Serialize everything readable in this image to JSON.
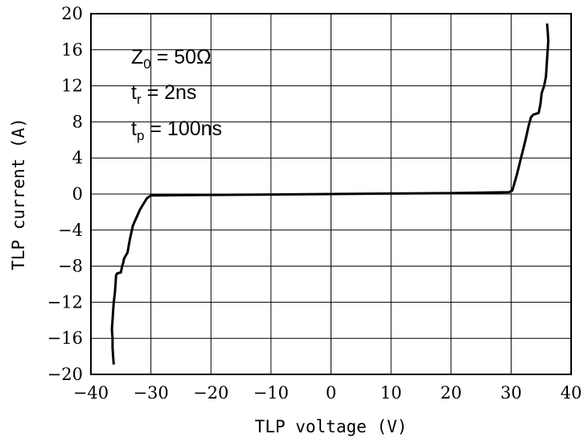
{
  "chart_data": {
    "type": "line",
    "xlabel": "TLP voltage (V)",
    "ylabel": "TLP current (A)",
    "xlim": [
      -40,
      40
    ],
    "ylim": [
      -20,
      20
    ],
    "xticks": [
      -40,
      -30,
      -20,
      -10,
      0,
      10,
      20,
      30,
      40
    ],
    "yticks": [
      20,
      16,
      12,
      8,
      4,
      0,
      -4,
      -8,
      -12,
      -16,
      -20
    ],
    "xtick_labels": [
      "−40",
      "−30",
      "−20",
      "−10",
      "0",
      "10",
      "20",
      "30",
      "40"
    ],
    "ytick_labels": [
      "20",
      "16",
      "12",
      "8",
      "4",
      "0",
      "−4",
      "−8",
      "−12",
      "−16",
      "−20"
    ],
    "grid": true,
    "annotation": {
      "line1": {
        "main": "Z",
        "sub": "0",
        "rest": " = 50Ω"
      },
      "line2": {
        "main": "t",
        "sub": "r",
        "rest": " = 2ns"
      },
      "line3": {
        "main": "t",
        "sub": "p",
        "rest": " = 100ns"
      }
    },
    "series": [
      {
        "color": "#000000",
        "x": [
          -36.2,
          -36.3,
          -36.4,
          -36.4,
          -36.5,
          -36.4,
          -36.3,
          -36.2,
          -36.0,
          -35.9,
          -35.8,
          -35.6,
          -35.0,
          -34.8,
          -34.6,
          -34.5,
          -33.9,
          -33.5,
          -33.0,
          -31.8,
          -30.7,
          -30.1,
          -29.8,
          -20,
          -10,
          0,
          10,
          20,
          29.6,
          30.2,
          30.9,
          32.4,
          32.9,
          33.3,
          33.7,
          34.6,
          34.9,
          35.1,
          35.5,
          35.8,
          35.9,
          36.0,
          36.1,
          36.2,
          36.1,
          36.0
        ],
        "y": [
          -18.9,
          -18.0,
          -17.0,
          -16.0,
          -15.0,
          -14.0,
          -13.0,
          -12.0,
          -11.0,
          -10.0,
          -9.0,
          -8.8,
          -8.7,
          -8.0,
          -7.6,
          -7.2,
          -6.5,
          -5.0,
          -3.5,
          -1.7,
          -0.5,
          -0.2,
          -0.15,
          -0.1,
          -0.05,
          0.0,
          0.05,
          0.1,
          0.2,
          0.4,
          2.0,
          6.0,
          7.5,
          8.5,
          8.8,
          9.0,
          10.0,
          11.2,
          12.0,
          13.0,
          14.0,
          15.0,
          16.0,
          17.0,
          18.0,
          18.9
        ]
      }
    ]
  }
}
